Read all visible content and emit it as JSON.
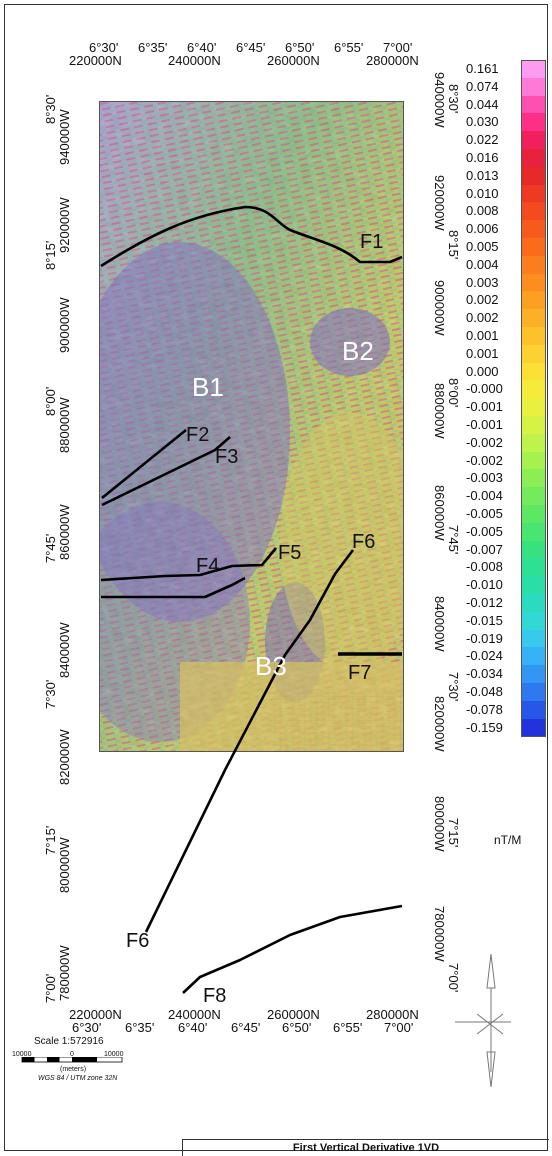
{
  "top_axis": {
    "lon_labels": [
      "6°30'",
      "6°35'",
      "6°40'",
      "6°45'",
      "6°50'",
      "6°55'",
      "7°00'"
    ],
    "utm_labels": [
      "220000N",
      "240000N",
      "260000N",
      "280000N"
    ]
  },
  "bottom_axis": {
    "utm_labels": [
      "220000N",
      "240000N",
      "260000N",
      "280000N"
    ],
    "lon_labels": [
      "6°30'",
      "6°35'",
      "6°40'",
      "6°45'",
      "6°50'",
      "6°55'",
      "7°00'"
    ]
  },
  "left_axis": {
    "lat_labels": [
      "8°30'",
      "8°15'",
      "8°00'",
      "7°45'",
      "7°30'",
      "7°15'",
      "7°00'"
    ],
    "utm_labels": [
      "940000W",
      "920000W",
      "900000W",
      "880000W",
      "860000W",
      "840000W",
      "820000W",
      "800000W",
      "780000W"
    ]
  },
  "right_axis": {
    "lat_labels": [
      "8°30'",
      "8°15'",
      "8°00'",
      "7°45'",
      "7°30'",
      "7°15'",
      "7°00'"
    ],
    "utm_labels": [
      "940000W",
      "920000W",
      "900000W",
      "880000W",
      "860000W",
      "840000W",
      "820000W",
      "800000W",
      "780000W"
    ]
  },
  "features": {
    "F1": "F1",
    "F2": "F2",
    "F3": "F3",
    "F4": "F4",
    "F5": "F5",
    "F6_top": "F6",
    "F6_bottom": "F6",
    "F7": "F7",
    "F8": "F8",
    "B1": "B1",
    "B2": "B2",
    "B3": "B3"
  },
  "legend": {
    "values": [
      "0.161",
      "0.074",
      "0.044",
      "0.030",
      "0.022",
      "0.016",
      "0.013",
      "0.010",
      "0.008",
      "0.006",
      "0.005",
      "0.004",
      "0.003",
      "0.002",
      "0.002",
      "0.001",
      "0.001",
      "0.000",
      "-0.000",
      "-0.001",
      "-0.001",
      "-0.002",
      "-0.002",
      "-0.003",
      "-0.004",
      "-0.005",
      "-0.005",
      "-0.007",
      "-0.008",
      "-0.010",
      "-0.012",
      "-0.015",
      "-0.019",
      "-0.024",
      "-0.034",
      "-0.048",
      "-0.078",
      "-0.159"
    ],
    "colors": [
      "#ff9cf2",
      "#ff7ad6",
      "#ff4fb0",
      "#ff2f88",
      "#f21f5f",
      "#e8213e",
      "#e62a2a",
      "#ee3a22",
      "#f44a20",
      "#f75a1e",
      "#fa6b1c",
      "#fb7d1d",
      "#fc8e1f",
      "#fd9f22",
      "#fdb027",
      "#fdc12c",
      "#fdd131",
      "#fde035",
      "#f6ea3a",
      "#e9f040",
      "#d6f245",
      "#bff24a",
      "#a6f04f",
      "#8ced55",
      "#74ea5c",
      "#5ee765",
      "#49e471",
      "#38e180",
      "#2ee092",
      "#2adea8",
      "#2bdbc0",
      "#31d8d7",
      "#38c9ee",
      "#37b2f6",
      "#3396f5",
      "#2e78f0",
      "#2757e6",
      "#2233dd"
    ],
    "unit": "nT/M"
  },
  "scale": {
    "title": "Scale 1:572916",
    "ticks": [
      "10000",
      "0",
      "10000"
    ],
    "unit": "(meters)",
    "projection": "WGS 84 / UTM zone 32N"
  },
  "map_title": "First Vertical Derivative 1VD"
}
